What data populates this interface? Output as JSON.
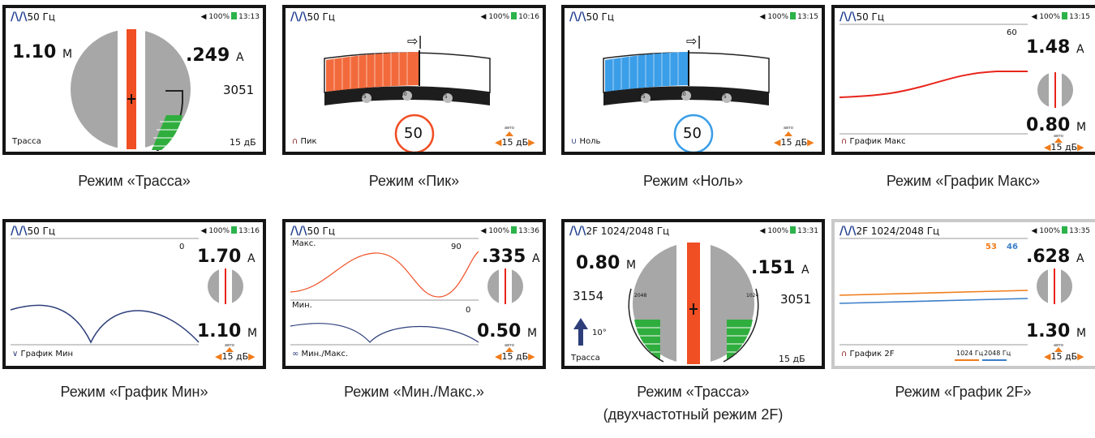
{
  "screens": [
    {
      "freq": "50 Гц",
      "battery": "100%",
      "time": "13:13",
      "depth": "1.10",
      "depth_unit": "М",
      "current": ".249",
      "current_unit": "А",
      "signal": "3051",
      "mode": "Трасса",
      "gain": "15 дБ",
      "caption": "Режим «Трасса»"
    },
    {
      "freq": "50 Гц",
      "battery": "100%",
      "time": "10:16",
      "scale": [
        "25",
        "50",
        "75"
      ],
      "value": "50",
      "mode": "Пик",
      "gain": "15 дБ",
      "avto": "авто",
      "caption": "Режим «Пик»"
    },
    {
      "freq": "50 Гц",
      "battery": "100%",
      "time": "13:15",
      "scale": [
        "25",
        "50",
        "75"
      ],
      "value": "50",
      "mode": "Ноль",
      "gain": "15 дБ",
      "avto": "авто",
      "caption": "Режим «Ноль»"
    },
    {
      "freq": "50 Гц",
      "battery": "100%",
      "time": "13:15",
      "axis_max": "60",
      "current": "1.48",
      "current_unit": "А",
      "depth": "0.80",
      "depth_unit": "М",
      "mode": "График Макс",
      "gain": "15 дБ",
      "avto": "авто",
      "caption": "Режим «График Макс»"
    },
    {
      "freq": "50 Гц",
      "battery": "100%",
      "time": "13:16",
      "axis_max": "0",
      "current": "1.70",
      "current_unit": "А",
      "depth": "1.10",
      "depth_unit": "М",
      "mode": "График Мин",
      "gain": "15 дБ",
      "avto": "авто",
      "caption": "Режим «График Мин»"
    },
    {
      "freq": "50 Гц",
      "battery": "100%",
      "time": "13:36",
      "label_max": "Макс.",
      "max_val": "90",
      "label_min": "Мин.",
      "min_val": "0",
      "current": ".335",
      "current_unit": "А",
      "depth": "0.50",
      "depth_unit": "М",
      "mode": "Мин./Макс.",
      "gain": "15 дБ",
      "avto": "авто",
      "caption": "Режим «Мин./Макс.»"
    },
    {
      "freq": "2F 1024/2048 Гц",
      "battery": "100%",
      "time": "13:31",
      "depth": "0.80",
      "depth_unit": "М",
      "current": ".151",
      "current_unit": "А",
      "signal_left": "3154",
      "signal_right": "3051",
      "bar_left": "2048",
      "bar_right": "1024",
      "angle": "10°",
      "mode": "Трасса",
      "gain": "15 дБ",
      "caption": "Режим «Трасса»",
      "caption2": "(двухчастотный режим 2F)"
    },
    {
      "freq": "2F 1024/2048 Гц",
      "battery": "100%",
      "time": "13:35",
      "val_orange": "53",
      "val_blue": "46",
      "current": ".628",
      "current_unit": "А",
      "depth": "1.30",
      "depth_unit": "М",
      "mode": "График 2F",
      "legend1": "1024 Гц",
      "legend2": "2048 Гц",
      "gain": "15 дБ",
      "avto": "авто",
      "caption": "Режим «График 2F»"
    }
  ],
  "colors": {
    "orange": "#f04e23",
    "blue": "#3a9ee8",
    "red": "#e8251c",
    "navy": "#2d3e7a",
    "green": "#2fae3e",
    "accent": "#f07c1a"
  }
}
